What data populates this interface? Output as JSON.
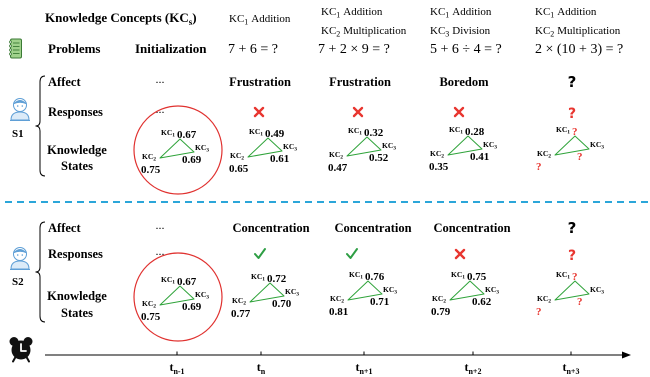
{
  "header": {
    "kc_label": "Knowledge Concepts (KC",
    "kc_label_sub": "s",
    "kc_label_close": ")",
    "problems_label": "Problems",
    "init_label": "Initialization"
  },
  "kc_prefix": "KC",
  "columns": [
    {
      "kcs": [
        {
          "sub": "1",
          "name": "Addition"
        }
      ],
      "problem": "7 + 6 = ?"
    },
    {
      "kcs": [
        {
          "sub": "1",
          "name": "Addition"
        },
        {
          "sub": "2",
          "name": "Multiplication"
        }
      ],
      "problem": "7 + 2 × 9 = ?"
    },
    {
      "kcs": [
        {
          "sub": "1",
          "name": "Addition"
        },
        {
          "sub": "3",
          "name": "Division"
        }
      ],
      "problem": "5 + 6 ÷ 4 = ?"
    },
    {
      "kcs": [
        {
          "sub": "1",
          "name": "Addition"
        },
        {
          "sub": "2",
          "name": "Multiplication"
        }
      ],
      "problem": "2 × (10 + 3) = ?"
    }
  ],
  "row_labels": {
    "affect": "Affect",
    "responses": "Responses",
    "knowledge": "Knowledge",
    "states": "States"
  },
  "students": [
    {
      "label": "S1",
      "icon": "student-icon",
      "steps": [
        {
          "affect": "...",
          "response_text": "...",
          "states": [
            {
              "kc": "1",
              "value": "0.67"
            },
            {
              "kc": "3",
              "value": "0.69"
            },
            {
              "kc": "2",
              "value": "0.75"
            }
          ]
        },
        {
          "affect": "Frustration",
          "response_icon": "cross-icon",
          "states": [
            {
              "kc": "1",
              "value": "0.49"
            },
            {
              "kc": "3",
              "value": "0.61"
            },
            {
              "kc": "2",
              "value": "0.65"
            }
          ]
        },
        {
          "affect": "Frustration",
          "response_icon": "cross-icon",
          "states": [
            {
              "kc": "1",
              "value": "0.32"
            },
            {
              "kc": "3",
              "value": "0.52"
            },
            {
              "kc": "2",
              "value": "0.47"
            }
          ]
        },
        {
          "affect": "Boredom",
          "response_icon": "cross-icon",
          "states": [
            {
              "kc": "1",
              "value": "0.28"
            },
            {
              "kc": "3",
              "value": "0.41"
            },
            {
              "kc": "2",
              "value": "0.35"
            }
          ]
        },
        {
          "affect": "?",
          "response_text": "?",
          "states": [
            {
              "kc": "1",
              "value": "?"
            },
            {
              "kc": "3",
              "value": "?"
            },
            {
              "kc": "2",
              "value": "?"
            }
          ]
        }
      ]
    },
    {
      "label": "S2",
      "icon": "student-icon",
      "steps": [
        {
          "affect": "...",
          "response_text": "...",
          "states": [
            {
              "kc": "1",
              "value": "0.67"
            },
            {
              "kc": "3",
              "value": "0.69"
            },
            {
              "kc": "2",
              "value": "0.75"
            }
          ]
        },
        {
          "affect": "Concentration",
          "response_icon": "check-icon",
          "states": [
            {
              "kc": "1",
              "value": "0.72"
            },
            {
              "kc": "3",
              "value": "0.70"
            },
            {
              "kc": "2",
              "value": "0.77"
            }
          ]
        },
        {
          "affect": "Concentration",
          "response_icon": "check-icon",
          "states": [
            {
              "kc": "1",
              "value": "0.76"
            },
            {
              "kc": "3",
              "value": "0.71"
            },
            {
              "kc": "2",
              "value": "0.81"
            }
          ]
        },
        {
          "affect": "Concentration",
          "response_icon": "cross-icon",
          "states": [
            {
              "kc": "1",
              "value": "0.75"
            },
            {
              "kc": "3",
              "value": "0.62"
            },
            {
              "kc": "2",
              "value": "0.79"
            }
          ]
        },
        {
          "affect": "?",
          "response_text": "?",
          "states": [
            {
              "kc": "1",
              "value": "?"
            },
            {
              "kc": "3",
              "value": "?"
            },
            {
              "kc": "2",
              "value": "?"
            }
          ]
        }
      ]
    }
  ],
  "timeline": [
    {
      "base": "t",
      "sub": "n-1"
    },
    {
      "base": "t",
      "sub": "n"
    },
    {
      "base": "t",
      "sub": "n+1"
    },
    {
      "base": "t",
      "sub": "n+2"
    },
    {
      "base": "t",
      "sub": "n+3"
    }
  ],
  "icons": {
    "problems": "notebook-icon",
    "students": "student-icon",
    "time": "alarm-clock-icon",
    "correct": "check-icon",
    "incorrect": "cross-icon"
  },
  "colors": {
    "state_graph": "#2fa33a",
    "init_highlight": "#e0312f",
    "incorrect": "#e8352f",
    "correct": "#2e9e44",
    "separator": "#2ba6d9",
    "student_icon": "#5f9fd6"
  }
}
